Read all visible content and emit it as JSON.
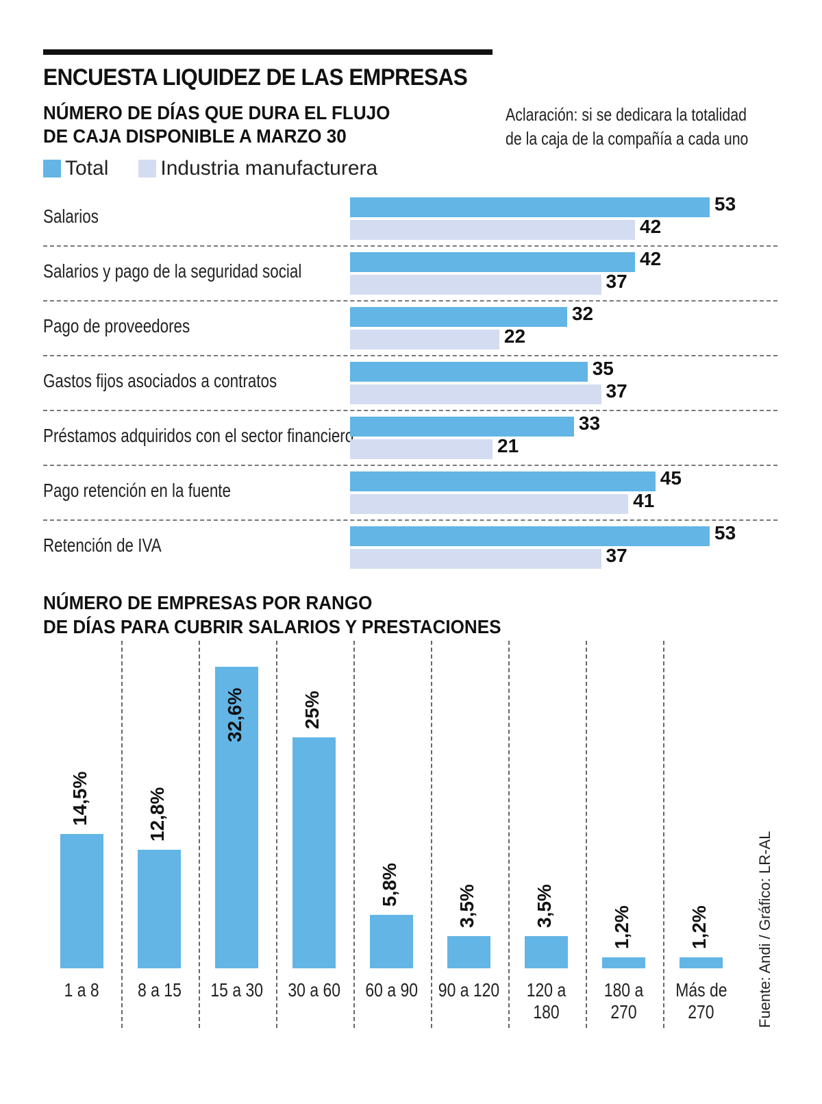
{
  "header": {
    "title": "ENCUESTA LIQUIDEZ DE LAS EMPRESAS",
    "subtitle_line1": "NÚMERO DE DÍAS QUE DURA EL FLUJO",
    "subtitle_line2": "DE CAJA DISPONIBLE A MARZO 30",
    "note_line1": "Aclaración:  si se dedicara la totalidad",
    "note_line2": "de la caja de la compañía a cada uno"
  },
  "colors": {
    "total": "#62b5e5",
    "industria": "#d3dcf0",
    "separator": "#777777"
  },
  "source": "Fuente: Andi / Gráfico: LR-AL",
  "chart_data": [
    {
      "type": "bar",
      "orientation": "horizontal",
      "title": "NÚMERO DE DÍAS QUE DURA EL FLUJO DE CAJA DISPONIBLE A MARZO 30",
      "legend": [
        "Total",
        "Industria manufacturera"
      ],
      "legend_position": "top-left",
      "categories": [
        "Salarios",
        "Salarios y pago de la seguridad social",
        "Pago de proveedores",
        "Gastos fijos asociados a contratos",
        "Préstamos adquiridos con el sector financiero",
        "Pago retención en la fuente",
        "Retención de IVA"
      ],
      "series": [
        {
          "name": "Total",
          "values": [
            53,
            42,
            32,
            35,
            33,
            45,
            53
          ]
        },
        {
          "name": "Industria manufacturera",
          "values": [
            42,
            37,
            22,
            37,
            21,
            41,
            37
          ]
        }
      ],
      "xlabel": "",
      "ylabel": "",
      "xlim": [
        0,
        53
      ],
      "grid": false
    },
    {
      "type": "bar",
      "orientation": "vertical",
      "title_line1": "NÚMERO DE EMPRESAS POR RANGO",
      "title_line2": "DE DÍAS PARA CUBRIR SALARIOS Y PRESTACIONES",
      "categories": [
        "1 a 8",
        "8 a 15",
        "15 a 30",
        "30 a 60",
        "60 a 90",
        "90 a 120",
        "120 a 180",
        "180 a 270",
        "Más de 270"
      ],
      "category_lines": [
        [
          "1 a 8"
        ],
        [
          "8 a 15"
        ],
        [
          "15 a 30"
        ],
        [
          "30 a 60"
        ],
        [
          "60 a 90"
        ],
        [
          "90 a 120"
        ],
        [
          "120 a 180"
        ],
        [
          "180 a 270"
        ],
        [
          "Más de",
          "270"
        ]
      ],
      "values": [
        14.5,
        12.8,
        32.6,
        25,
        5.8,
        3.5,
        3.5,
        1.2,
        1.2
      ],
      "labels": [
        "14,5%",
        "12,8%",
        "32,6%",
        "25%",
        "5,8%",
        "3,5%",
        "3,5%",
        "1,2%",
        "1,2%"
      ],
      "ylabel": "%",
      "ylim": [
        0,
        32.6
      ],
      "grid": false
    }
  ]
}
